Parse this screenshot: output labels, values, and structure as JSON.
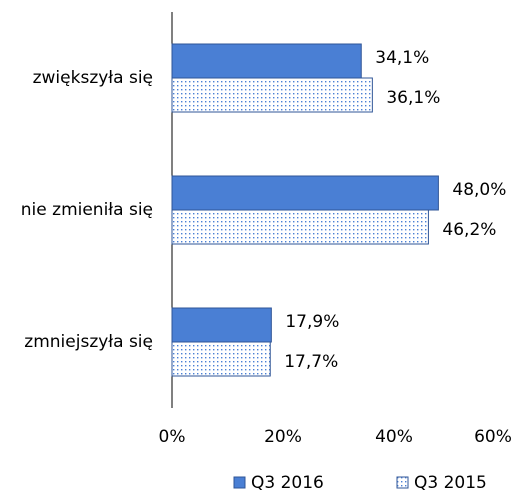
{
  "chart_data": {
    "type": "hbar",
    "categories": [
      "zwiększyła się",
      "nie zmieniła się",
      "zmniejszyła się"
    ],
    "series": [
      {
        "name": "Q3 2016",
        "color": "#4a7fd4",
        "fill": "solid",
        "values": [
          34.1,
          48.0,
          17.9
        ],
        "value_labels": [
          "34,1%",
          "48,0%",
          "17,9%"
        ]
      },
      {
        "name": "Q3 2015",
        "color": "#4a7fd4",
        "fill": "dots",
        "values": [
          36.1,
          46.2,
          17.7
        ],
        "value_labels": [
          "36,1%",
          "46,2%",
          "17,7%"
        ]
      }
    ],
    "xlim": [
      0,
      60
    ],
    "xticks": [
      {
        "value": 0,
        "label": "0%"
      },
      {
        "value": 20,
        "label": "20%"
      },
      {
        "value": 40,
        "label": "40%"
      },
      {
        "value": 60,
        "label": "60%"
      }
    ],
    "legend": "bottom"
  }
}
